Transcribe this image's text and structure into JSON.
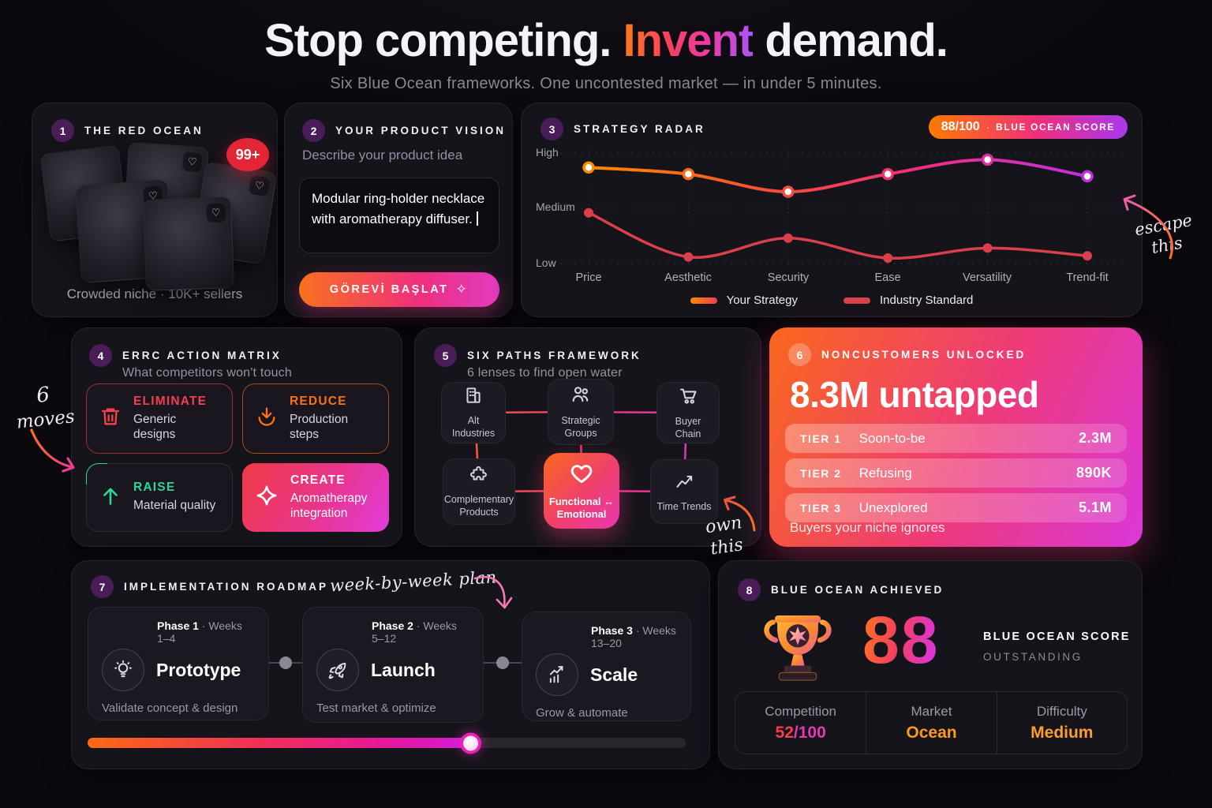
{
  "header": {
    "title_pre": "Stop competing. ",
    "title_accent": "Invent",
    "title_post": " demand.",
    "subtitle": "Six Blue Ocean frameworks. One uncontested market — in under 5 minutes."
  },
  "red_ocean": {
    "number": "1",
    "title": "THE RED OCEAN",
    "count_badge": "99+",
    "heart_glyph": "♡",
    "caption": "Crowded niche · 10K+ sellers"
  },
  "product_vision": {
    "number": "2",
    "title": "YOUR PRODUCT VISION",
    "label": "Describe your product idea",
    "input_value": "Modular ring-holder necklace with aromatherapy diffuser.",
    "button_label": "GÖREVİ BAŞLAT",
    "button_icon": "✧"
  },
  "strategy_radar": {
    "number": "3",
    "title": "STRATEGY RADAR",
    "score_value": "88/100",
    "score_sep": "·",
    "score_label": "BLUE OCEAN SCORE"
  },
  "chart_data": {
    "type": "line",
    "title": "STRATEGY RADAR",
    "categories": [
      "Price",
      "Aesthetic",
      "Security",
      "Ease",
      "Versatility",
      "Trend-fit"
    ],
    "yticks": [
      "High",
      "Medium",
      "Low"
    ],
    "ylim": [
      0,
      1
    ],
    "grid": "dotted",
    "legend_position": "bottom",
    "series": [
      {
        "name": "Your Strategy",
        "values": [
          0.87,
          0.81,
          0.65,
          0.81,
          0.94,
          0.79
        ],
        "colors": [
          "#ff8a00",
          "#f8532f",
          "#ef2f7c",
          "#c12fe0"
        ]
      },
      {
        "name": "Industry Standard",
        "values": [
          0.46,
          0.06,
          0.23,
          0.05,
          0.14,
          0.07
        ],
        "colors": [
          "#d9404a"
        ]
      }
    ]
  },
  "errc": {
    "number": "4",
    "title": "ERRC ACTION MATRIX",
    "subtitle": "What competitors won't touch",
    "items": [
      {
        "action": "ELIMINATE",
        "detail": "Generic designs",
        "icon": "trash",
        "color": "#f43f4e"
      },
      {
        "action": "REDUCE",
        "detail": "Production steps",
        "icon": "arrow-down-tray",
        "color": "#f97316"
      },
      {
        "action": "RAISE",
        "detail": "Material quality",
        "icon": "arrow-up",
        "color": "#2fd393"
      },
      {
        "action": "CREATE",
        "detail": "Aromatherapy integration",
        "icon": "sparkle",
        "color": "#ffffff"
      }
    ]
  },
  "six_paths": {
    "number": "5",
    "title": "SIX PATHS FRAMEWORK",
    "subtitle": "6 lenses to find open water",
    "nodes": [
      {
        "label": "Alt Industries",
        "icon": "building"
      },
      {
        "label": "Strategic Groups",
        "icon": "users"
      },
      {
        "label": "Buyer Chain",
        "icon": "cart"
      },
      {
        "label": "Complementary Products",
        "icon": "puzzle"
      },
      {
        "label": "Functional ↔ Emotional",
        "icon": "heart",
        "highlighted": true
      },
      {
        "label": "Time Trends",
        "icon": "trend"
      }
    ]
  },
  "noncustomers": {
    "number": "6",
    "title": "NONCUSTOMERS UNLOCKED",
    "headline": "8.3M untapped",
    "tiers": [
      {
        "tier": "TIER 1",
        "name": "Soon-to-be",
        "value": "2.3M"
      },
      {
        "tier": "TIER 2",
        "name": "Refusing",
        "value": "890K"
      },
      {
        "tier": "TIER 3",
        "name": "Unexplored",
        "value": "5.1M"
      }
    ],
    "footer": "Buyers your niche ignores"
  },
  "roadmap": {
    "number": "7",
    "title": "IMPLEMENTATION ROADMAP",
    "dot": "·",
    "phases": [
      {
        "phase": "Phase 1",
        "weeks": "Weeks 1–4",
        "name": "Prototype",
        "desc": "Validate concept & design",
        "icon": "lightbulb"
      },
      {
        "phase": "Phase 2",
        "weeks": "Weeks 5–12",
        "name": "Launch",
        "desc": "Test market & optimize",
        "icon": "rocket"
      },
      {
        "phase": "Phase 3",
        "weeks": "Weeks 13–20",
        "name": "Scale",
        "desc": "Grow & automate",
        "icon": "growth-chart"
      }
    ],
    "progress_pct": 64
  },
  "achieved": {
    "number": "8",
    "title": "BLUE OCEAN ACHIEVED",
    "score": "88",
    "score_label": "BLUE OCEAN SCORE",
    "score_sub": "OUTSTANDING",
    "stats": [
      {
        "label": "Competition",
        "value": "52",
        "suffix": "/100"
      },
      {
        "label": "Market",
        "value": "Ocean"
      },
      {
        "label": "Difficulty",
        "value": "Medium"
      }
    ]
  },
  "annotations": {
    "escape_line1": "escape",
    "escape_line2": "this",
    "moves_line1": "6",
    "moves_line2": "moves",
    "plan": "week-by-week plan",
    "own_line1": "own",
    "own_line2": "this"
  },
  "colors": {
    "accent_orange": "#ff7a1a",
    "accent_pink": "#ee3a7a",
    "accent_magenta": "#d939d9",
    "accent_purple": "#a855f7",
    "industry_red": "#d9404a",
    "raise_green": "#2fd393",
    "eliminate_red": "#f43f4e",
    "reduce_orange": "#f97316",
    "badge_red": "#e32636",
    "badge_purple": "#4a1d58"
  }
}
